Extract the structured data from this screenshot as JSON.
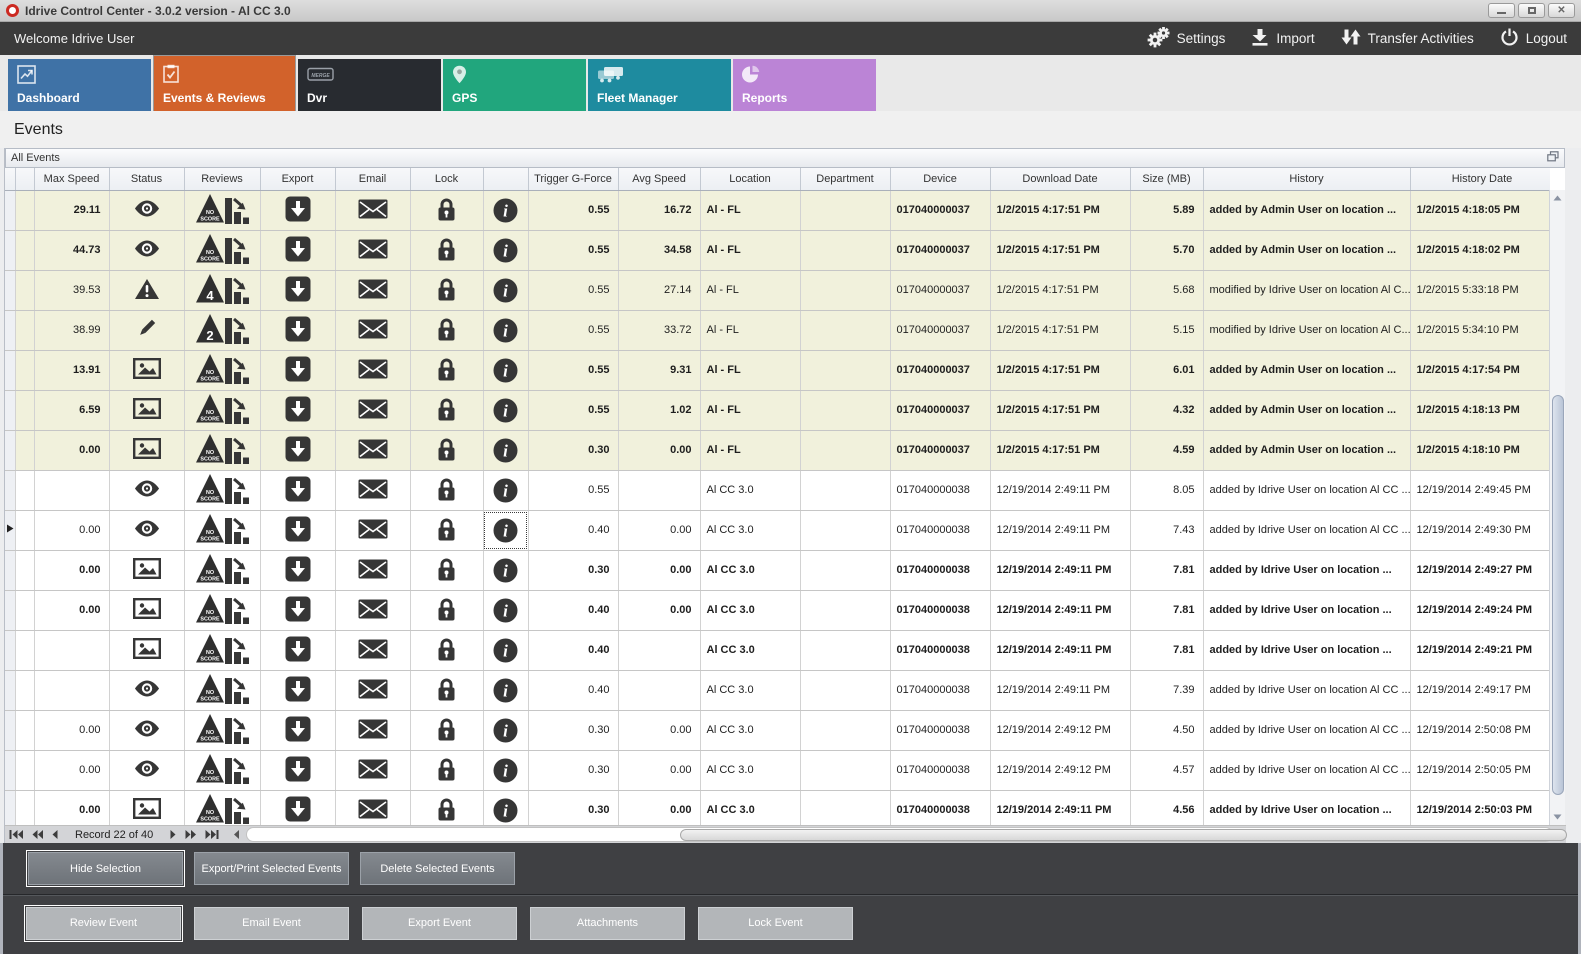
{
  "window": {
    "title": "Idrive Control Center - 3.0.2 version - Al CC 3.0"
  },
  "topbar": {
    "welcome": "Welcome Idrive User",
    "menu": [
      {
        "label": "Settings",
        "icon": "gears-icon"
      },
      {
        "label": "Import",
        "icon": "import-icon"
      },
      {
        "label": "Transfer Activities",
        "icon": "transfer-icon"
      },
      {
        "label": "Logout",
        "icon": "power-icon"
      }
    ]
  },
  "tabs": [
    {
      "label": "Dashboard",
      "color": "#3f72a6",
      "icon": "line-chart-icon",
      "active": false
    },
    {
      "label": "Events & Reviews",
      "color": "#d2622b",
      "icon": "clipboard-icon",
      "active": true
    },
    {
      "label": "Dvr",
      "color": "#282b30",
      "icon": "dvr-icon",
      "active": false
    },
    {
      "label": "GPS",
      "color": "#21a67d",
      "icon": "map-pin-icon",
      "active": false
    },
    {
      "label": "Fleet Manager",
      "color": "#1e8b9f",
      "icon": "fleet-icon",
      "active": false
    },
    {
      "label": "Reports",
      "color": "#bb84d6",
      "icon": "pie-chart-icon",
      "active": false
    }
  ],
  "page_title": "Events",
  "grid": {
    "group_title": "All Events",
    "columns": [
      "",
      "",
      "Max Speed",
      "Status",
      "Reviews",
      "Export",
      "Email",
      "Lock",
      "",
      "Trigger G-Force",
      "Avg Speed",
      "Location",
      "Department",
      "Device",
      "Download Date",
      "Size (MB)",
      "History",
      "History Date"
    ],
    "rows": [
      {
        "id_fragment": "2",
        "max_speed": "29.11",
        "status": "eye",
        "review_badge": "NO SCORE",
        "trigger": "0.55",
        "avg_speed": "16.72",
        "location": "Al - FL",
        "department": "",
        "device": "017040000037",
        "download_date": "1/2/2015 4:17:51 PM",
        "size": "5.89",
        "history": "added by Admin User on location ...",
        "history_date": "1/2/2015 4:18:05 PM",
        "bold": true,
        "beige": true,
        "current": false
      },
      {
        "id_fragment": "5",
        "max_speed": "44.73",
        "status": "eye",
        "review_badge": "NO SCORE",
        "trigger": "0.55",
        "avg_speed": "34.58",
        "location": "Al - FL",
        "department": "",
        "device": "017040000037",
        "download_date": "1/2/2015 4:17:51 PM",
        "size": "5.70",
        "history": "added by Admin User on location ...",
        "history_date": "1/2/2015 4:18:02 PM",
        "bold": true,
        "beige": true,
        "current": false
      },
      {
        "id_fragment": "4",
        "max_speed": "39.53",
        "status": "warning",
        "review_badge": "4",
        "trigger": "0.55",
        "avg_speed": "27.14",
        "location": "Al - FL",
        "department": "",
        "device": "017040000037",
        "download_date": "1/2/2015 4:17:51 PM",
        "size": "5.68",
        "history": "modified by Idrive User on location Al C...",
        "history_date": "1/2/2015 5:33:18 PM",
        "bold": false,
        "beige": true,
        "current": false
      },
      {
        "id_fragment": "9",
        "max_speed": "38.99",
        "status": "pencil",
        "review_badge": "2",
        "trigger": "0.55",
        "avg_speed": "33.72",
        "location": "Al - FL",
        "department": "",
        "device": "017040000037",
        "download_date": "1/2/2015 4:17:51 PM",
        "size": "5.15",
        "history": "modified by Idrive User on location Al C...",
        "history_date": "1/2/2015 5:34:10 PM",
        "bold": false,
        "beige": true,
        "current": false
      },
      {
        "id_fragment": "5",
        "max_speed": "13.91",
        "status": "image",
        "review_badge": "NO SCORE",
        "trigger": "0.55",
        "avg_speed": "9.31",
        "location": "Al - FL",
        "department": "",
        "device": "017040000037",
        "download_date": "1/2/2015 4:17:51 PM",
        "size": "6.01",
        "history": "added by Admin User on location ...",
        "history_date": "1/2/2015 4:17:54 PM",
        "bold": true,
        "beige": true,
        "current": false
      },
      {
        "id_fragment": "0",
        "max_speed": "6.59",
        "status": "image",
        "review_badge": "NO SCORE",
        "trigger": "0.55",
        "avg_speed": "1.02",
        "location": "Al - FL",
        "department": "",
        "device": "017040000037",
        "download_date": "1/2/2015 4:17:51 PM",
        "size": "4.32",
        "history": "added by Admin User on location ...",
        "history_date": "1/2/2015 4:18:13 PM",
        "bold": true,
        "beige": true,
        "current": false
      },
      {
        "id_fragment": "0",
        "max_speed": "0.00",
        "status": "image",
        "review_badge": "NO SCORE",
        "trigger": "0.30",
        "avg_speed": "0.00",
        "location": "Al - FL",
        "department": "",
        "device": "017040000037",
        "download_date": "1/2/2015 4:17:51 PM",
        "size": "4.59",
        "history": "added by Admin User on location ...",
        "history_date": "1/2/2015 4:18:10 PM",
        "bold": true,
        "beige": true,
        "current": false
      },
      {
        "id_fragment": "5",
        "max_speed": "",
        "status": "eye",
        "review_badge": "NO SCORE",
        "trigger": "0.55",
        "avg_speed": "",
        "location": "Al CC 3.0",
        "department": "",
        "device": "017040000038",
        "download_date": "12/19/2014 2:49:11 PM",
        "size": "8.05",
        "history": "added by Idrive User on location Al CC ...",
        "history_date": "12/19/2014 2:49:45 PM",
        "bold": false,
        "beige": false,
        "current": false
      },
      {
        "id_fragment": "7",
        "max_speed": "0.00",
        "status": "eye",
        "review_badge": "NO SCORE",
        "trigger": "0.40",
        "avg_speed": "0.00",
        "location": "Al CC 3.0",
        "department": "",
        "device": "017040000038",
        "download_date": "12/19/2014 2:49:11 PM",
        "size": "7.43",
        "history": "added by Idrive User on location Al CC ...",
        "history_date": "12/19/2014 2:49:30 PM",
        "bold": false,
        "beige": false,
        "current": true
      },
      {
        "id_fragment": "7",
        "max_speed": "0.00",
        "status": "image",
        "review_badge": "NO SCORE",
        "trigger": "0.30",
        "avg_speed": "0.00",
        "location": "Al CC 3.0",
        "department": "",
        "device": "017040000038",
        "download_date": "12/19/2014 2:49:11 PM",
        "size": "7.81",
        "history": "added by Idrive User on location ...",
        "history_date": "12/19/2014 2:49:27 PM",
        "bold": true,
        "beige": false,
        "current": false
      },
      {
        "id_fragment": "6",
        "max_speed": "0.00",
        "status": "image",
        "review_badge": "NO SCORE",
        "trigger": "0.40",
        "avg_speed": "0.00",
        "location": "Al CC 3.0",
        "department": "",
        "device": "017040000038",
        "download_date": "12/19/2014 2:49:11 PM",
        "size": "7.81",
        "history": "added by Idrive User on location ...",
        "history_date": "12/19/2014 2:49:24 PM",
        "bold": true,
        "beige": false,
        "current": false
      },
      {
        "id_fragment": "8",
        "max_speed": "",
        "status": "image",
        "review_badge": "NO SCORE",
        "trigger": "0.40",
        "avg_speed": "",
        "location": "Al CC 3.0",
        "department": "",
        "device": "017040000038",
        "download_date": "12/19/2014 2:49:11 PM",
        "size": "7.81",
        "history": "added by Idrive User on location ...",
        "history_date": "12/19/2014 2:49:21 PM",
        "bold": true,
        "beige": false,
        "current": false
      },
      {
        "id_fragment": "6",
        "max_speed": "",
        "status": "eye",
        "review_badge": "NO SCORE",
        "trigger": "0.40",
        "avg_speed": "",
        "location": "Al CC 3.0",
        "department": "",
        "device": "017040000038",
        "download_date": "12/19/2014 2:49:11 PM",
        "size": "7.39",
        "history": "added by Idrive User on location Al CC ...",
        "history_date": "12/19/2014 2:49:17 PM",
        "bold": false,
        "beige": false,
        "current": false
      },
      {
        "id_fragment": "0",
        "max_speed": "0.00",
        "status": "eye",
        "review_badge": "NO SCORE",
        "trigger": "0.30",
        "avg_speed": "0.00",
        "location": "Al CC 3.0",
        "department": "",
        "device": "017040000038",
        "download_date": "12/19/2014 2:49:12 PM",
        "size": "4.50",
        "history": "added by Idrive User on location Al CC ...",
        "history_date": "12/19/2014 2:50:08 PM",
        "bold": false,
        "beige": false,
        "current": false
      },
      {
        "id_fragment": "8",
        "max_speed": "0.00",
        "status": "eye",
        "review_badge": "NO SCORE",
        "trigger": "0.30",
        "avg_speed": "0.00",
        "location": "Al CC 3.0",
        "department": "",
        "device": "017040000038",
        "download_date": "12/19/2014 2:49:12 PM",
        "size": "4.57",
        "history": "added by Idrive User on location Al CC ...",
        "history_date": "12/19/2014 2:50:05 PM",
        "bold": false,
        "beige": false,
        "current": false
      },
      {
        "id_fragment": "0",
        "max_speed": "0.00",
        "status": "image",
        "review_badge": "NO SCORE",
        "trigger": "0.30",
        "avg_speed": "0.00",
        "location": "Al CC 3.0",
        "department": "",
        "device": "017040000038",
        "download_date": "12/19/2014 2:49:11 PM",
        "size": "4.56",
        "history": "added by Idrive User on location ...",
        "history_date": "12/19/2014 2:50:03 PM",
        "bold": true,
        "beige": false,
        "current": false
      }
    ]
  },
  "navigator": {
    "record_text": "Record 22 of 40"
  },
  "action_bars": {
    "selection_buttons": [
      "Hide Selection",
      "Export/Print Selected Events",
      "Delete Selected  Events"
    ],
    "event_buttons": [
      "Review Event",
      "Email Event",
      "Export Event",
      "Attachments",
      "Lock Event"
    ]
  },
  "colors": {
    "accent_orange": "#d2622b",
    "row_beige": "#f1f1dc",
    "dark_bar": "#3b3b3b",
    "icon_dark": "#363636"
  }
}
